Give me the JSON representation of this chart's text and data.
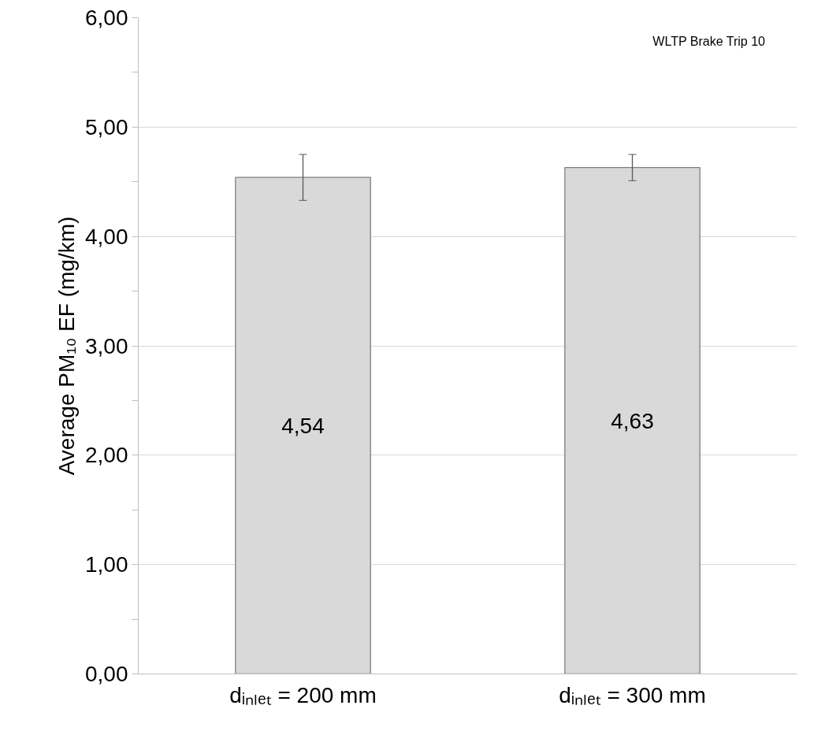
{
  "chart_data": {
    "type": "bar",
    "ylabel": "Average PM₁₀ EF (mg/km)",
    "categories": [
      "dᵢₙₗₑₜ = 200 mm",
      "dᵢₙₗₑₜ = 300 mm"
    ],
    "values": [
      4.54,
      4.63
    ],
    "errors": [
      0.21,
      0.12
    ],
    "value_labels": [
      "4,54",
      "4,63"
    ],
    "color": "#d9d9d9",
    "ylim": [
      0,
      6
    ],
    "yticks": [
      {
        "value": 0,
        "label": "0,00"
      },
      {
        "value": 0.5,
        "label": null
      },
      {
        "value": 1,
        "label": "1,00"
      },
      {
        "value": 1.5,
        "label": null
      },
      {
        "value": 2,
        "label": "2,00"
      },
      {
        "value": 2.5,
        "label": null
      },
      {
        "value": 3,
        "label": "3,00"
      },
      {
        "value": 3.5,
        "label": null
      },
      {
        "value": 4,
        "label": "4,00"
      },
      {
        "value": 4.5,
        "label": null
      },
      {
        "value": 5,
        "label": "5,00"
      },
      {
        "value": 5.5,
        "label": null
      },
      {
        "value": 6,
        "label": "6,00"
      }
    ],
    "grid": "y",
    "annotations": [
      "WLTP Brake Trip 10"
    ]
  }
}
